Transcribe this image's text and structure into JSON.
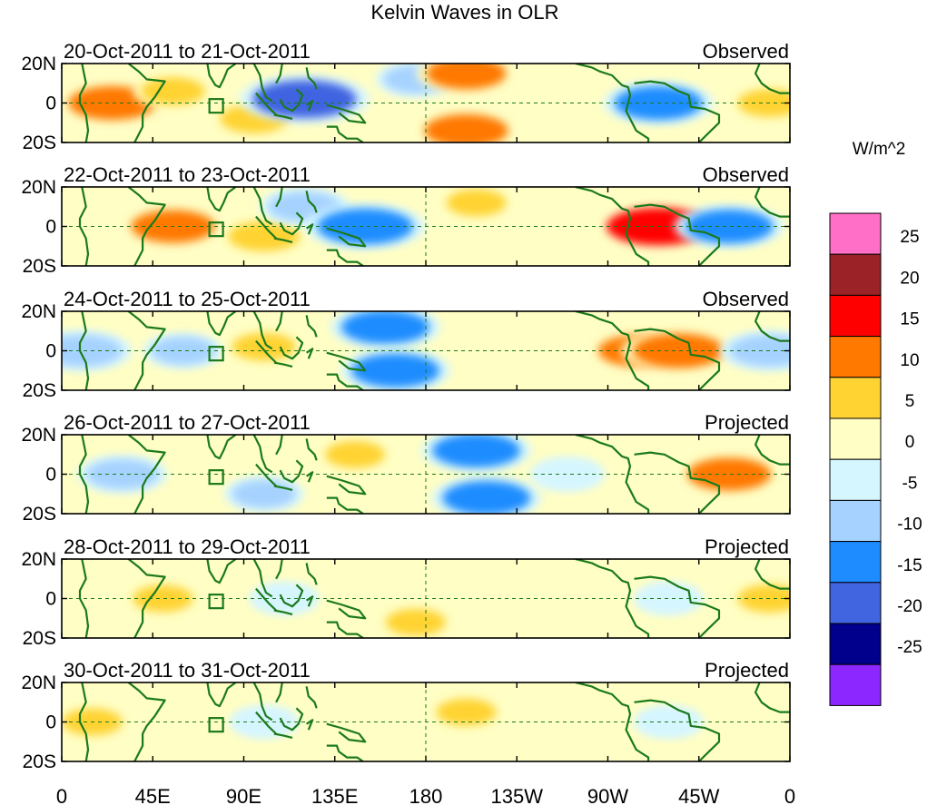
{
  "chart_data": {
    "type": "heatmap",
    "title": "Kelvin Waves in OLR",
    "variable": "OLR anomaly",
    "x_tick_labels": [
      "0",
      "45E",
      "90E",
      "135E",
      "180",
      "135W",
      "90W",
      "45W",
      "0"
    ],
    "x_ticks_deg": [
      0,
      45,
      90,
      135,
      180,
      225,
      270,
      315,
      360
    ],
    "y_tick_labels": [
      "20N",
      "0",
      "20S"
    ],
    "y_ticks_deg": [
      20,
      0,
      -20
    ],
    "colorbar": {
      "unit": "W/m^2",
      "tick_labels": [
        "25",
        "20",
        "15",
        "10",
        "5",
        "0",
        "-5",
        "-10",
        "-15",
        "-20",
        "-25"
      ],
      "levels": [
        25,
        20,
        15,
        10,
        5,
        0,
        -5,
        -10,
        -15,
        -20,
        -25
      ],
      "colors": [
        "#ff6ec7",
        "#9b2226",
        "#ff0000",
        "#ff7800",
        "#ffd332",
        "#fffec4",
        "#d6f6ff",
        "#a6d2ff",
        "#1e8cff",
        "#4164e1",
        "#00008c",
        "#8c28ff"
      ]
    },
    "panels": [
      {
        "dates": "20-Oct-2011 to 21-Oct-2011",
        "label": "Observed",
        "anomalies": [
          {
            "lon": 25,
            "lat": 0,
            "value": 12
          },
          {
            "lon": 55,
            "lat": 6,
            "value": 6
          },
          {
            "lon": 95,
            "lat": -8,
            "value": 7
          },
          {
            "lon": 120,
            "lat": 2,
            "value": -16
          },
          {
            "lon": 175,
            "lat": 12,
            "value": -6
          },
          {
            "lon": 200,
            "lat": 15,
            "value": 10
          },
          {
            "lon": 200,
            "lat": -14,
            "value": 11
          },
          {
            "lon": 295,
            "lat": 0,
            "value": -12
          },
          {
            "lon": 350,
            "lat": 0,
            "value": 6
          }
        ]
      },
      {
        "dates": "22-Oct-2011 to 23-Oct-2011",
        "label": "Observed",
        "anomalies": [
          {
            "lon": 55,
            "lat": 0,
            "value": 11
          },
          {
            "lon": 100,
            "lat": -5,
            "value": 8
          },
          {
            "lon": 120,
            "lat": 10,
            "value": -8
          },
          {
            "lon": 150,
            "lat": 0,
            "value": -14
          },
          {
            "lon": 205,
            "lat": 12,
            "value": 5
          },
          {
            "lon": 295,
            "lat": 0,
            "value": 16
          },
          {
            "lon": 330,
            "lat": 0,
            "value": -12
          }
        ]
      },
      {
        "dates": "24-Oct-2011 to 25-Oct-2011",
        "label": "Observed",
        "anomalies": [
          {
            "lon": 10,
            "lat": 0,
            "value": -10
          },
          {
            "lon": 60,
            "lat": 0,
            "value": -6
          },
          {
            "lon": 100,
            "lat": 2,
            "value": 6
          },
          {
            "lon": 160,
            "lat": 12,
            "value": -12
          },
          {
            "lon": 165,
            "lat": -10,
            "value": -12
          },
          {
            "lon": 285,
            "lat": 0,
            "value": 10
          },
          {
            "lon": 305,
            "lat": 0,
            "value": 13
          },
          {
            "lon": 350,
            "lat": 0,
            "value": -10
          }
        ]
      },
      {
        "dates": "26-Oct-2011 to 27-Oct-2011",
        "label": "Projected",
        "anomalies": [
          {
            "lon": 30,
            "lat": 0,
            "value": -8
          },
          {
            "lon": 100,
            "lat": -10,
            "value": -6
          },
          {
            "lon": 145,
            "lat": 10,
            "value": 5
          },
          {
            "lon": 205,
            "lat": 12,
            "value": -12
          },
          {
            "lon": 210,
            "lat": -12,
            "value": -12
          },
          {
            "lon": 250,
            "lat": 0,
            "value": -5
          },
          {
            "lon": 330,
            "lat": 0,
            "value": 11
          }
        ]
      },
      {
        "dates": "28-Oct-2011 to 29-Oct-2011",
        "label": "Projected",
        "anomalies": [
          {
            "lon": 50,
            "lat": 0,
            "value": 5
          },
          {
            "lon": 110,
            "lat": 0,
            "value": -4
          },
          {
            "lon": 175,
            "lat": -12,
            "value": 5
          },
          {
            "lon": 300,
            "lat": 0,
            "value": -4
          },
          {
            "lon": 350,
            "lat": 0,
            "value": 6
          }
        ]
      },
      {
        "dates": "30-Oct-2011 to 31-Oct-2011",
        "label": "Projected",
        "anomalies": [
          {
            "lon": 15,
            "lat": 0,
            "value": 5
          },
          {
            "lon": 100,
            "lat": 0,
            "value": -4
          },
          {
            "lon": 200,
            "lat": 5,
            "value": 5
          },
          {
            "lon": 300,
            "lat": 0,
            "value": -4
          }
        ]
      }
    ]
  }
}
